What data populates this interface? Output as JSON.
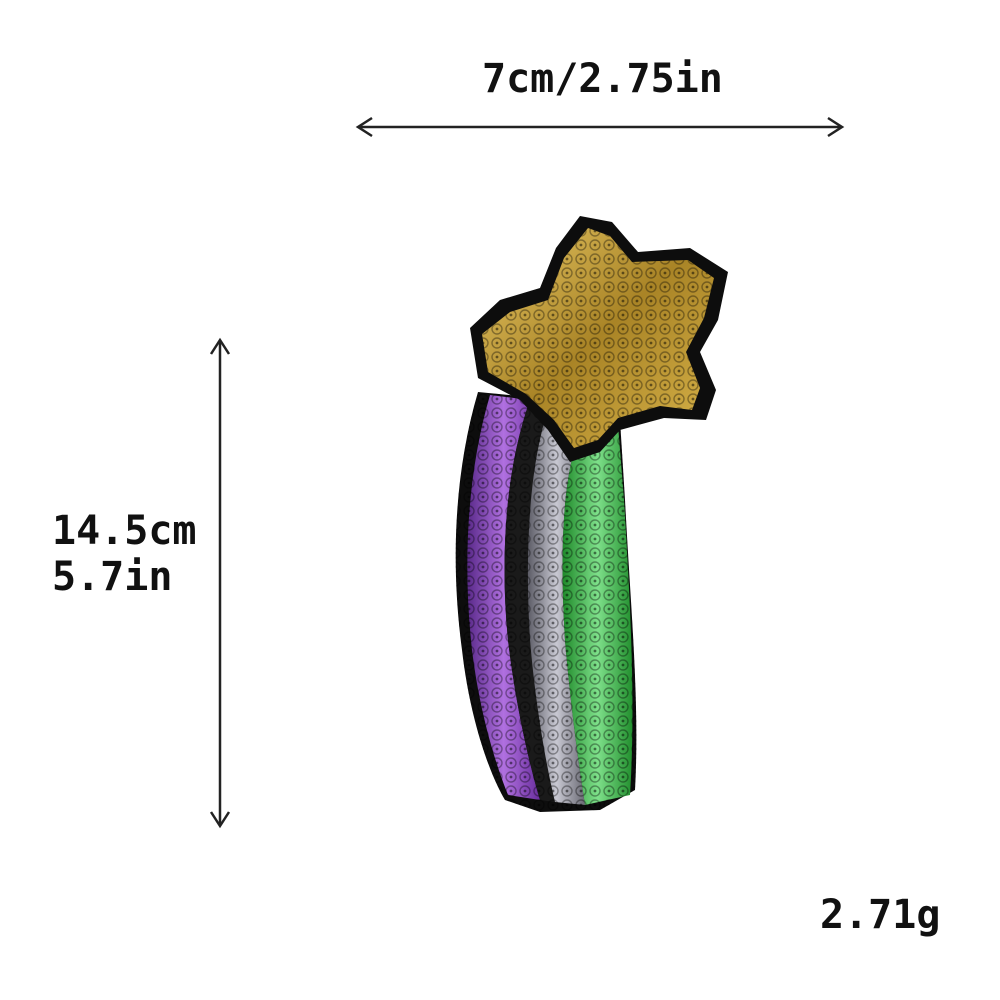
{
  "dimensions": {
    "width_label": "7cm/2.75in",
    "height_cm": "14.5cm",
    "height_in": "5.7in",
    "weight_label": "2.71g"
  },
  "patch": {
    "description_colors": {
      "star": "#b8922e",
      "purple": "#7a3fb0",
      "silver": "#9a9aa4",
      "green": "#3fb64a",
      "border": "#111111"
    }
  }
}
